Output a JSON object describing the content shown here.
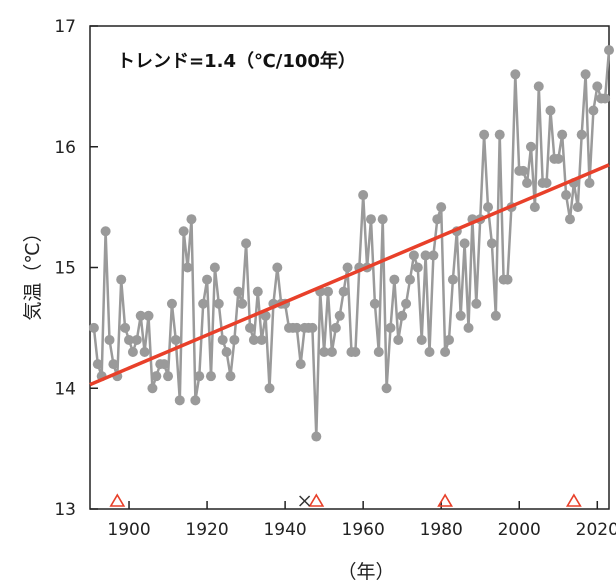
{
  "chart_data": {
    "type": "line",
    "annotation": "トレンド=1.4（℃/100年）",
    "xlabel": "（年）",
    "ylabel": "気温（℃）",
    "xlim": [
      1890,
      2023
    ],
    "ylim": [
      13,
      17
    ],
    "x_ticks": [
      1900,
      1920,
      1940,
      1960,
      1980,
      2000,
      2020
    ],
    "y_ticks": [
      13,
      14,
      15,
      16,
      17
    ],
    "grid": false,
    "colors": {
      "series": "#9a9a9a",
      "trend": "#e8402a",
      "marker_triangle": "#e8402a",
      "marker_cross": "#333333"
    },
    "series": [
      {
        "x": [
          1891,
          1892,
          1893,
          1894,
          1895,
          1896,
          1897,
          1898,
          1899,
          1900,
          1901,
          1902,
          1903,
          1904,
          1905,
          1906,
          1907,
          1908,
          1909,
          1910,
          1911,
          1912,
          1913,
          1914,
          1915,
          1916,
          1917,
          1918,
          1919,
          1920,
          1921,
          1922,
          1923,
          1924,
          1925,
          1926,
          1927,
          1928,
          1929,
          1930,
          1931,
          1932,
          1933,
          1934,
          1935,
          1936,
          1937,
          1938,
          1939,
          1940,
          1941,
          1942,
          1943,
          1944,
          1945,
          1946,
          1947,
          1948,
          1949,
          1950,
          1951,
          1952,
          1953,
          1954,
          1955,
          1956,
          1957,
          1958,
          1959,
          1960,
          1961,
          1962,
          1963,
          1964,
          1965,
          1966,
          1967,
          1968,
          1969,
          1970,
          1971,
          1972,
          1973,
          1974,
          1975,
          1976,
          1977,
          1978,
          1979,
          1980,
          1981,
          1982,
          1983,
          1984,
          1985,
          1986,
          1987,
          1988,
          1989,
          1990,
          1991,
          1992,
          1993,
          1994,
          1995,
          1996,
          1997,
          1998,
          1999,
          2000,
          2001,
          2002,
          2003,
          2004,
          2005,
          2006,
          2007,
          2008,
          2009,
          2010,
          2011,
          2012,
          2013,
          2014,
          2015,
          2016,
          2017,
          2018,
          2019,
          2020,
          2021,
          2022,
          2023
        ],
        "values": [
          14.5,
          14.2,
          14.1,
          15.3,
          14.4,
          14.2,
          14.1,
          14.9,
          14.5,
          14.4,
          14.3,
          14.4,
          14.6,
          14.3,
          14.6,
          14.0,
          14.1,
          14.2,
          14.2,
          14.1,
          14.7,
          14.4,
          13.9,
          15.3,
          15.0,
          15.4,
          13.9,
          14.1,
          14.7,
          14.9,
          14.1,
          15.0,
          14.7,
          14.4,
          14.3,
          14.1,
          14.4,
          14.8,
          14.7,
          15.2,
          14.5,
          14.4,
          14.8,
          14.4,
          14.6,
          14.0,
          14.7,
          15.0,
          14.7,
          14.7,
          14.5,
          14.5,
          14.5,
          14.2,
          14.5,
          14.5,
          14.5,
          13.6,
          14.8,
          14.3,
          14.8,
          14.3,
          14.5,
          14.6,
          14.8,
          15.0,
          14.3,
          14.3,
          15.0,
          15.6,
          15.0,
          15.4,
          14.7,
          14.3,
          15.4,
          14.0,
          14.5,
          14.9,
          14.4,
          14.6,
          14.7,
          14.9,
          15.1,
          15.0,
          14.4,
          15.1,
          14.3,
          15.1,
          15.4,
          15.5,
          14.3,
          14.4,
          14.9,
          15.3,
          14.6,
          15.2,
          14.5,
          15.4,
          14.7,
          15.4,
          16.1,
          15.5,
          15.2,
          14.6,
          16.1,
          14.9,
          14.9,
          15.5,
          16.6,
          15.8,
          15.8,
          15.7,
          16.0,
          15.5,
          16.5,
          15.7,
          15.7,
          16.3,
          15.9,
          15.9,
          16.1,
          15.6,
          15.4,
          15.7,
          15.5,
          16.1,
          16.6,
          15.7,
          16.3,
          16.5,
          16.4,
          16.4,
          16.8
        ]
      }
    ],
    "trend_line": {
      "x": [
        1890,
        2023
      ],
      "y": [
        14.03,
        15.85
      ]
    },
    "triangle_markers_x": [
      1897,
      1948,
      1981,
      2014
    ],
    "cross_markers_x": [
      1945
    ]
  }
}
